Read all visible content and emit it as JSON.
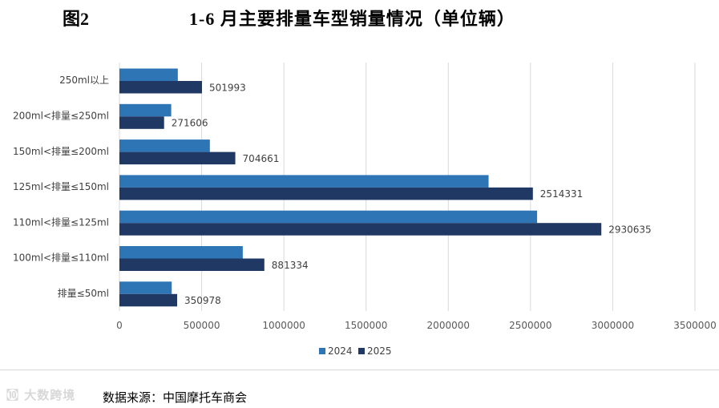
{
  "figure": {
    "label": "图2",
    "title": "1-6 月主要排量车型销量情况（单位辆）",
    "source": "数据来源：中国摩托车商会",
    "watermark": "㉈ 大数跨境"
  },
  "chart_data": {
    "type": "bar",
    "orientation": "horizontal",
    "title": "1-6 月主要排量车型销量情况（单位辆）",
    "categories": [
      "250ml以上",
      "200ml<排量≤250ml",
      "150ml<排量≤200ml",
      "125ml<排量≤150ml",
      "110ml<排量≤125ml",
      "100ml<排量≤110ml",
      "排量≤50ml"
    ],
    "series": [
      {
        "name": "2024",
        "color": "#2e75b6",
        "values": [
          355000,
          315000,
          550000,
          2245000,
          2540000,
          750000,
          318000
        ],
        "labels": false
      },
      {
        "name": "2025",
        "color": "#1f3864",
        "values": [
          501993,
          271606,
          704661,
          2514331,
          2930635,
          881334,
          350978
        ],
        "labels": true
      }
    ],
    "xlim": [
      0,
      3500000
    ],
    "xticks": [
      0,
      500000,
      1000000,
      1500000,
      2000000,
      2500000,
      3000000,
      3500000
    ],
    "grid": true,
    "legend_position": "bottom"
  }
}
